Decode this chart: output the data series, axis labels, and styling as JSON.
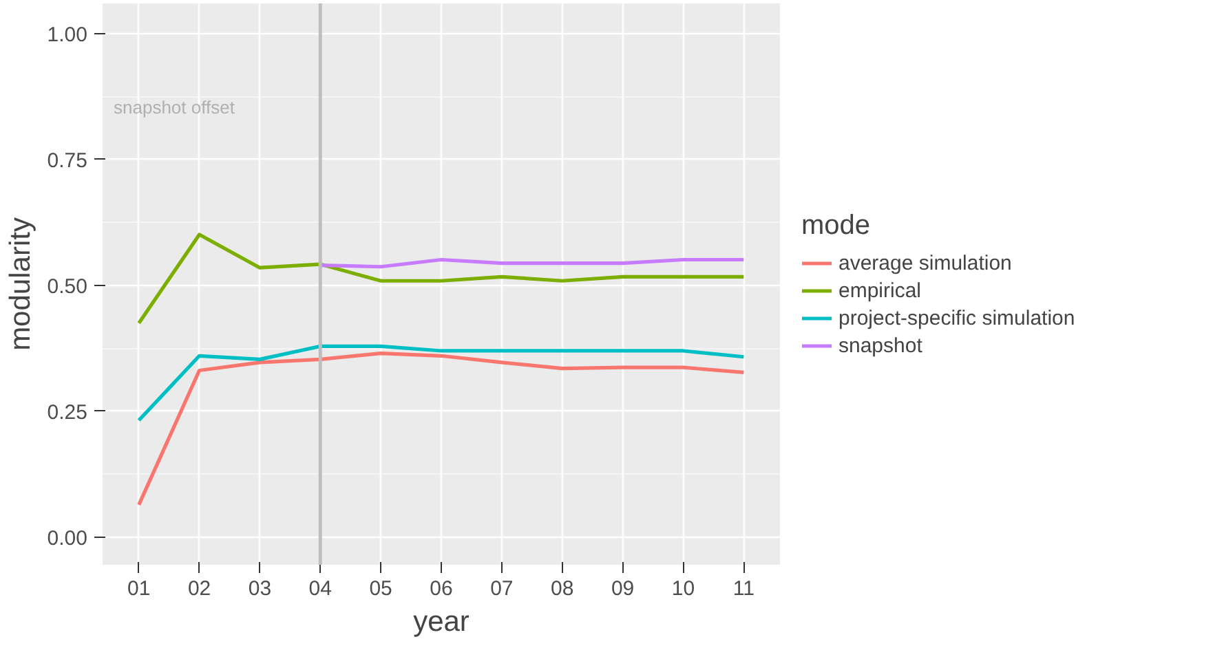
{
  "chart_data": {
    "type": "line",
    "xlabel": "year",
    "ylabel": "modularity",
    "legend_title": "mode",
    "categories": [
      "01",
      "02",
      "03",
      "04",
      "05",
      "06",
      "07",
      "08",
      "09",
      "10",
      "11"
    ],
    "series": [
      {
        "name": "average simulation",
        "color": "#f8766d",
        "values": [
          0.064,
          0.331,
          0.347,
          0.353,
          0.365,
          0.36,
          0.347,
          0.335,
          0.337,
          0.337,
          0.327
        ]
      },
      {
        "name": "empirical",
        "color": "#7cae00",
        "values": [
          0.425,
          0.601,
          0.535,
          0.542,
          0.509,
          0.509,
          0.517,
          0.509,
          0.517,
          0.517,
          0.517
        ]
      },
      {
        "name": "project-specific simulation",
        "color": "#00bfc4",
        "values": [
          0.232,
          0.36,
          0.353,
          0.379,
          0.379,
          0.37,
          0.37,
          0.37,
          0.37,
          0.37,
          0.358
        ]
      },
      {
        "name": "snapshot",
        "color": "#c77cff",
        "values": [
          null,
          null,
          null,
          0.54,
          0.537,
          0.551,
          0.544,
          0.544,
          0.544,
          0.551,
          0.551
        ]
      }
    ],
    "ylim": [
      -0.055,
      1.06
    ],
    "yticks": [
      {
        "value": 0,
        "label": "0.00"
      },
      {
        "value": 0.25,
        "label": "0.25"
      },
      {
        "value": 0.5,
        "label": "0.50"
      },
      {
        "value": 0.75,
        "label": "0.75"
      },
      {
        "value": 1,
        "label": "1.00"
      }
    ],
    "ref_lines": [
      {
        "axis": "x",
        "value": "04",
        "color": "#bebebe"
      }
    ],
    "annotations": [
      "snapshot offset"
    ],
    "grid": true,
    "legend": "right",
    "line_style": "solid",
    "marker": "none"
  }
}
